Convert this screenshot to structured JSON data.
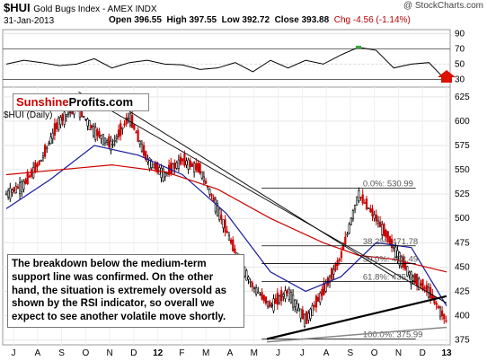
{
  "header": {
    "symbol": "$HUI",
    "name": "Gold Bugs Index - AMEX INDX",
    "date": "31-Jan-2013",
    "open": "Open 396.55",
    "high": "High 397.55",
    "low": "Low 392.72",
    "close": "Close 393.88",
    "chg": "Chg -4.56 (-1.14%)",
    "watermark": "@ StockCharts.com"
  },
  "logo": {
    "part1": "Sunshine",
    "part2": "Profits.com"
  },
  "symbol_label": "$HUI (Daily)",
  "annotation": "The breakdown below the medium-term support line was confirmed. On the other hand, the situation is extremely oversold as shown by the RSI indicator, so overall we expect to see another volatile move shortly.",
  "colors": {
    "up": "#000000",
    "down": "#cc0000",
    "ma_short": "#1a1aa0",
    "ma_long": "#cc0000",
    "rsi_fill": "#3aa63a",
    "arrow": "#dd1100"
  },
  "chart_data": [
    {
      "type": "line",
      "name": "RSI",
      "yticks": [
        30,
        50,
        70,
        90
      ],
      "ylim": [
        20,
        95
      ],
      "x": [
        0,
        20,
        40,
        60,
        80,
        100,
        120,
        140,
        160,
        180,
        200,
        220,
        240,
        260,
        280,
        300,
        320,
        340,
        360,
        380,
        400,
        420,
        440,
        460,
        480,
        500
      ],
      "values": [
        50,
        55,
        52,
        48,
        50,
        57,
        45,
        52,
        55,
        50,
        49,
        43,
        45,
        52,
        40,
        55,
        45,
        55,
        50,
        62,
        72,
        68,
        45,
        50,
        52,
        28
      ]
    },
    {
      "type": "candlestick",
      "title": "$HUI (Daily)",
      "xlabel_ticks": [
        "J",
        "A",
        "S",
        "O",
        "N",
        "D",
        "12",
        "F",
        "M",
        "A",
        "M",
        "J",
        "J",
        "A",
        "S",
        "O",
        "N",
        "D",
        "13"
      ],
      "yticks": [
        375,
        400,
        425,
        450,
        475,
        500,
        525,
        550,
        575,
        600,
        625
      ],
      "ylim": [
        370,
        635
      ],
      "close_points": [
        {
          "x": 0,
          "y": 525
        },
        {
          "x": 20,
          "y": 535
        },
        {
          "x": 40,
          "y": 560
        },
        {
          "x": 60,
          "y": 600
        },
        {
          "x": 80,
          "y": 615
        },
        {
          "x": 100,
          "y": 590
        },
        {
          "x": 120,
          "y": 575
        },
        {
          "x": 140,
          "y": 605
        },
        {
          "x": 160,
          "y": 560
        },
        {
          "x": 180,
          "y": 545
        },
        {
          "x": 200,
          "y": 560
        },
        {
          "x": 220,
          "y": 550
        },
        {
          "x": 240,
          "y": 510
        },
        {
          "x": 260,
          "y": 465
        },
        {
          "x": 280,
          "y": 430
        },
        {
          "x": 300,
          "y": 410
        },
        {
          "x": 320,
          "y": 425
        },
        {
          "x": 340,
          "y": 395
        },
        {
          "x": 360,
          "y": 425
        },
        {
          "x": 380,
          "y": 460
        },
        {
          "x": 400,
          "y": 525
        },
        {
          "x": 420,
          "y": 500
        },
        {
          "x": 440,
          "y": 470
        },
        {
          "x": 460,
          "y": 440
        },
        {
          "x": 480,
          "y": 425
        },
        {
          "x": 500,
          "y": 394
        }
      ],
      "ma_short": [
        {
          "x": 0,
          "y": 510
        },
        {
          "x": 50,
          "y": 540
        },
        {
          "x": 100,
          "y": 575
        },
        {
          "x": 150,
          "y": 565
        },
        {
          "x": 200,
          "y": 545
        },
        {
          "x": 250,
          "y": 505
        },
        {
          "x": 300,
          "y": 445
        },
        {
          "x": 340,
          "y": 425
        },
        {
          "x": 380,
          "y": 440
        },
        {
          "x": 420,
          "y": 475
        },
        {
          "x": 460,
          "y": 470
        },
        {
          "x": 500,
          "y": 410
        }
      ],
      "ma_long": [
        {
          "x": 0,
          "y": 545
        },
        {
          "x": 60,
          "y": 550
        },
        {
          "x": 120,
          "y": 555
        },
        {
          "x": 180,
          "y": 548
        },
        {
          "x": 240,
          "y": 530
        },
        {
          "x": 300,
          "y": 500
        },
        {
          "x": 360,
          "y": 475
        },
        {
          "x": 400,
          "y": 462
        },
        {
          "x": 440,
          "y": 458
        },
        {
          "x": 500,
          "y": 445
        }
      ],
      "fib_levels": [
        {
          "label": "0.0%: 530.99",
          "value": 530.99
        },
        {
          "label": "38.2%: 471.78",
          "value": 471.78
        },
        {
          "label": "50.0%: 453.49",
          "value": 453.49
        },
        {
          "label": "61.8%: 435.20",
          "value": 435.2
        },
        {
          "label": "100.0%: 375.99",
          "value": 375.99
        }
      ]
    }
  ]
}
